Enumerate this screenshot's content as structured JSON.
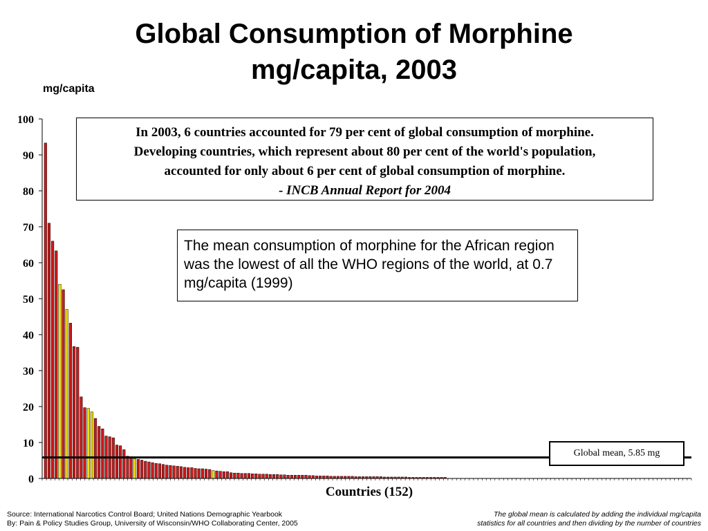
{
  "slide": {
    "title_line1": "Global Consumption of Morphine",
    "title_line2": "mg/capita, 2003",
    "unit_label": "mg/capita",
    "quote": {
      "line1": "In 2003, 6 countries accounted for 79 per cent of global consumption of morphine.",
      "line2": "Developing countries, which represent about 80 per cent of the world's population,",
      "line3": "accounted for only about 6 per cent of global consumption of morphine.",
      "cite_prefix": "- ",
      "cite": "INCB Annual Report for 2004"
    },
    "note": "The mean consumption of morphine for the African region was the lowest of all the WHO regions of the world, at 0.7 mg/capita (1999)",
    "mean_label": "Global mean, 5.85 mg",
    "x_axis_title": "Countries (152)",
    "source_line1": "Source: International Narcotics Control Board; United Nations Demographic Yearbook",
    "source_line2": "By: Pain & Policy Studies Group, University of Wisconsin/WHO Collaborating Center,  2005",
    "footnote_line1": "The global mean is calculated by adding the individual mg/capita",
    "footnote_line2": "statistics for all countries and then dividing by the number of countries"
  },
  "chart_data": {
    "type": "bar",
    "title": "Global Consumption of Morphine mg/capita, 2003",
    "ylabel": "mg/capita",
    "xlabel": "Countries (152)",
    "ylim": [
      0,
      100
    ],
    "yticks": [
      0,
      10,
      20,
      30,
      40,
      50,
      60,
      70,
      80,
      90,
      100
    ],
    "grid": false,
    "reference_line": {
      "label": "Global mean, 5.85 mg",
      "value": 5.85
    },
    "colors": {
      "bar": "#cc1a1a",
      "highlight": "#f0e010",
      "outline": "#000000"
    },
    "values": [
      93.3,
      71,
      66,
      63.3,
      54,
      52.5,
      47,
      43.2,
      36.7,
      36.5,
      22.7,
      19.7,
      19.5,
      18.5,
      16.7,
      14.5,
      13.8,
      11.8,
      11.6,
      11.3,
      9.3,
      9.1,
      8,
      6.2,
      5.8,
      5.5,
      5.3,
      5.1,
      4.8,
      4.6,
      4.4,
      4.2,
      4.1,
      3.9,
      3.7,
      3.6,
      3.5,
      3.4,
      3.3,
      3.1,
      3,
      3,
      2.8,
      2.7,
      2.7,
      2.6,
      2.5,
      2.2,
      2.1,
      2,
      1.9,
      1.9,
      1.6,
      1.5,
      1.5,
      1.4,
      1.4,
      1.4,
      1.3,
      1.3,
      1.2,
      1.2,
      1.2,
      1.1,
      1.1,
      1.1,
      1,
      1,
      0.9,
      0.9,
      0.9,
      0.9,
      0.9,
      0.9,
      0.8,
      0.8,
      0.7,
      0.7,
      0.7,
      0.7,
      0.6,
      0.6,
      0.6,
      0.6,
      0.6,
      0.6,
      0.6,
      0.5,
      0.5,
      0.5,
      0.5,
      0.5,
      0.5,
      0.5,
      0.5,
      0.4,
      0.4,
      0.4,
      0.4,
      0.4,
      0.4,
      0.4,
      0.3,
      0.3,
      0.3,
      0.3,
      0.3,
      0.3,
      0.3,
      0.3,
      0.3,
      0.3,
      0.3
    ],
    "highlighted_indices": [
      4,
      6,
      12,
      13,
      25,
      47
    ]
  }
}
